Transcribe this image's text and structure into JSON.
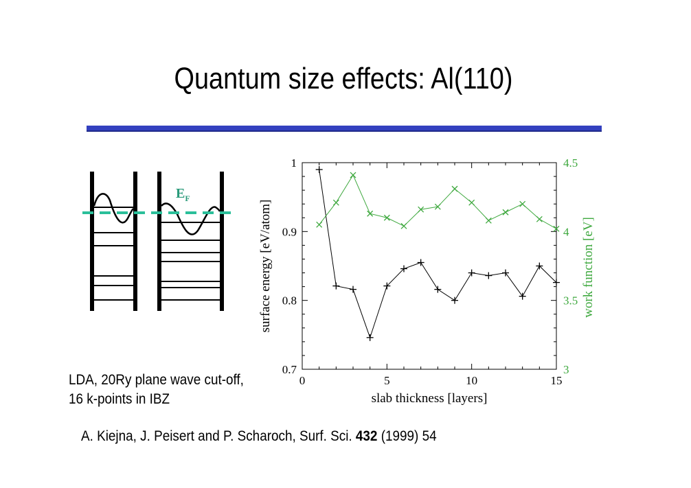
{
  "slide": {
    "title": "Quantum size effects: Al(110)",
    "caption": "LDA, 20Ry plane wave cut-off, 16 k-points in IBZ",
    "reference": {
      "authors": "A. Kiejna, J. Peisert and P. Scharoch, Surf. Sci. ",
      "volume": "432",
      "rest": " (1999) 54"
    },
    "fermi_label": "E",
    "fermi_sub": "F"
  },
  "colors": {
    "rule": "#3340bf",
    "fermi_line": "#2bbf9a",
    "fermi_label": "#2a9a7a",
    "work_function": "#3ea83e",
    "surface_energy": "#000000"
  },
  "chart_data": {
    "type": "line",
    "xlabel": "slab thickness [layers]",
    "ylabel": "surface energy [eV/atom]",
    "y2label": "work function [eV]",
    "xlim": [
      0,
      15
    ],
    "ylim": [
      0.7,
      1.0
    ],
    "y2lim": [
      3,
      4.5
    ],
    "xticks": [
      0,
      5,
      10,
      15
    ],
    "yticks": [
      0.7,
      0.8,
      0.9,
      1
    ],
    "y2ticks": [
      3,
      3.5,
      4,
      4.5
    ],
    "xtick_labels": [
      "0",
      "5",
      "10",
      "15"
    ],
    "ytick_labels": [
      "0.7",
      "0.8",
      "0.9",
      "1"
    ],
    "y2tick_labels": [
      "3",
      "3.5",
      "4",
      "4.5"
    ],
    "series": [
      {
        "axis": "left",
        "marker": "+",
        "x": [
          1,
          2,
          3,
          4,
          5,
          6,
          7,
          8,
          9,
          10,
          11,
          12,
          13,
          14,
          15
        ],
        "values": [
          0.99,
          0.821,
          0.816,
          0.746,
          0.821,
          0.846,
          0.855,
          0.816,
          0.8,
          0.84,
          0.836,
          0.84,
          0.806,
          0.85,
          0.826
        ]
      },
      {
        "axis": "right",
        "marker": "x",
        "x": [
          1,
          2,
          3,
          4,
          5,
          6,
          7,
          8,
          9,
          10,
          11,
          12,
          13,
          14,
          15
        ],
        "values": [
          4.05,
          4.21,
          4.41,
          4.13,
          4.1,
          4.04,
          4.16,
          4.18,
          4.31,
          4.21,
          4.08,
          4.14,
          4.2,
          4.09,
          4.02
        ]
      }
    ]
  }
}
